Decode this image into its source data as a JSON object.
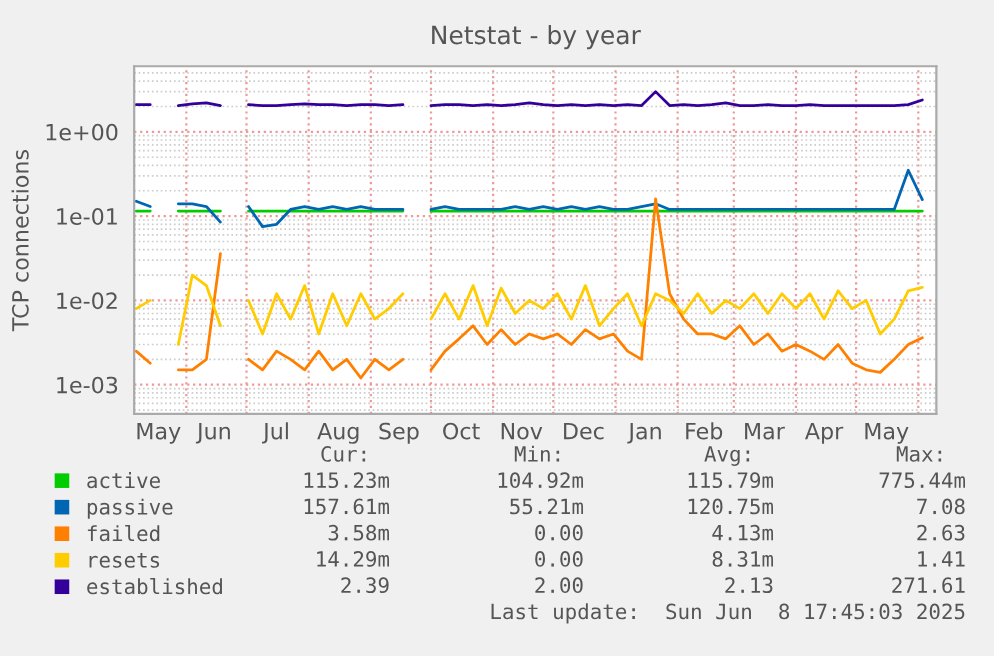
{
  "chart_data": {
    "type": "line",
    "title": "Netstat - by year",
    "ylabel": "TCP connections",
    "log": "y",
    "grid": true,
    "legend": "bottom",
    "xlim": [
      "2024-05-06",
      "2025-06-10"
    ],
    "ylim": [
      0.00045,
      6
    ],
    "xticks": [
      {
        "value": "2024-06-01",
        "label": null
      },
      {
        "value": "2024-07-01",
        "label": null
      },
      {
        "value": "2024-08-01",
        "label": null
      },
      {
        "value": "2024-09-01",
        "label": null
      },
      {
        "value": "2024-10-01",
        "label": null
      },
      {
        "value": "2024-11-01",
        "label": null
      },
      {
        "value": "2024-12-01",
        "label": null
      },
      {
        "value": "2025-01-01",
        "label": null
      },
      {
        "value": "2025-02-01",
        "label": null
      },
      {
        "value": "2025-03-01",
        "label": null
      },
      {
        "value": "2025-04-01",
        "label": null
      },
      {
        "value": "2025-05-01",
        "label": null
      },
      {
        "value": "2025-06-01",
        "label": null
      },
      {
        "value": "2024-05-18",
        "label": "May"
      },
      {
        "value": "2024-06-15",
        "label": "Jun"
      },
      {
        "value": "2024-07-16",
        "label": "Jul"
      },
      {
        "value": "2024-08-16",
        "label": "Aug"
      },
      {
        "value": "2024-09-15",
        "label": "Sep"
      },
      {
        "value": "2024-10-16",
        "label": "Oct"
      },
      {
        "value": "2024-11-15",
        "label": "Nov"
      },
      {
        "value": "2024-12-16",
        "label": "Dec"
      },
      {
        "value": "2025-01-16",
        "label": "Jan"
      },
      {
        "value": "2025-02-14",
        "label": "Feb"
      },
      {
        "value": "2025-03-16",
        "label": "Mar"
      },
      {
        "value": "2025-04-15",
        "label": "Apr"
      },
      {
        "value": "2025-05-16",
        "label": "May"
      }
    ],
    "yticks": [
      {
        "value": 0.001,
        "label": "1e-03"
      },
      {
        "value": 0.01,
        "label": "1e-02"
      },
      {
        "value": 0.1,
        "label": "1e-01"
      },
      {
        "value": 1,
        "label": "1e+00"
      }
    ],
    "x": [
      "2024-05-07",
      "2024-05-14",
      "2024-05-21",
      "2024-05-28",
      "2024-06-04",
      "2024-06-11",
      "2024-06-18",
      "2024-06-25",
      "2024-07-02",
      "2024-07-09",
      "2024-07-16",
      "2024-07-23",
      "2024-07-30",
      "2024-08-06",
      "2024-08-13",
      "2024-08-20",
      "2024-08-27",
      "2024-09-03",
      "2024-09-10",
      "2024-09-17",
      "2024-09-24",
      "2024-10-01",
      "2024-10-08",
      "2024-10-15",
      "2024-10-22",
      "2024-10-29",
      "2024-11-05",
      "2024-11-12",
      "2024-11-19",
      "2024-11-26",
      "2024-12-03",
      "2024-12-10",
      "2024-12-17",
      "2024-12-24",
      "2024-12-31",
      "2025-01-07",
      "2025-01-14",
      "2025-01-21",
      "2025-01-28",
      "2025-02-04",
      "2025-02-11",
      "2025-02-18",
      "2025-02-25",
      "2025-03-04",
      "2025-03-11",
      "2025-03-18",
      "2025-03-25",
      "2025-04-01",
      "2025-04-08",
      "2025-04-15",
      "2025-04-22",
      "2025-04-29",
      "2025-05-06",
      "2025-05-13",
      "2025-05-20",
      "2025-05-27",
      "2025-06-03"
    ],
    "series": [
      {
        "name": "active",
        "color": "#00cc00",
        "values": [
          0.115,
          0.115,
          null,
          0.115,
          0.115,
          0.115,
          0.115,
          null,
          0.115,
          0.115,
          0.115,
          0.115,
          0.115,
          0.115,
          0.115,
          0.115,
          0.115,
          0.115,
          0.115,
          0.115,
          null,
          0.115,
          0.115,
          0.115,
          0.115,
          0.115,
          0.115,
          0.115,
          0.115,
          0.115,
          0.115,
          0.115,
          0.115,
          0.115,
          0.115,
          0.115,
          0.115,
          0.115,
          0.115,
          0.115,
          0.115,
          0.115,
          0.115,
          0.115,
          0.115,
          0.115,
          0.115,
          0.115,
          0.115,
          0.115,
          0.115,
          0.115,
          0.115,
          0.115,
          0.115,
          0.115,
          0.115
        ]
      },
      {
        "name": "passive",
        "color": "#0066b3",
        "values": [
          0.15,
          0.13,
          null,
          0.14,
          0.14,
          0.13,
          0.085,
          null,
          0.13,
          0.075,
          0.08,
          0.12,
          0.13,
          0.12,
          0.13,
          0.12,
          0.13,
          0.12,
          0.12,
          0.12,
          null,
          0.12,
          0.13,
          0.12,
          0.12,
          0.12,
          0.12,
          0.13,
          0.12,
          0.13,
          0.12,
          0.13,
          0.12,
          0.13,
          0.12,
          0.12,
          0.13,
          0.14,
          0.12,
          0.12,
          0.12,
          0.12,
          0.12,
          0.12,
          0.12,
          0.12,
          0.12,
          0.12,
          0.12,
          0.12,
          0.12,
          0.12,
          0.12,
          0.12,
          0.12,
          0.35,
          0.157
        ]
      },
      {
        "name": "failed",
        "color": "#ff8000",
        "values": [
          0.0025,
          0.0018,
          null,
          0.0015,
          0.0015,
          0.002,
          0.036,
          null,
          0.002,
          0.0015,
          0.0025,
          0.002,
          0.0015,
          0.0025,
          0.0015,
          0.002,
          0.0012,
          0.002,
          0.0015,
          0.002,
          null,
          0.0015,
          0.0025,
          0.0035,
          0.005,
          0.003,
          0.0045,
          0.003,
          0.004,
          0.0035,
          0.004,
          0.003,
          0.0045,
          0.0035,
          0.004,
          0.0025,
          0.002,
          0.16,
          0.012,
          0.006,
          0.004,
          0.004,
          0.0035,
          0.005,
          0.003,
          0.004,
          0.0025,
          0.003,
          0.0025,
          0.002,
          0.003,
          0.0018,
          0.0015,
          0.0014,
          0.002,
          0.003,
          0.0036
        ]
      },
      {
        "name": "resets",
        "color": "#ffcc00",
        "values": [
          0.008,
          0.01,
          null,
          0.003,
          0.02,
          0.015,
          0.005,
          null,
          0.01,
          0.004,
          0.012,
          0.006,
          0.015,
          0.004,
          0.012,
          0.005,
          0.012,
          0.006,
          0.008,
          0.012,
          null,
          0.006,
          0.012,
          0.006,
          0.015,
          0.005,
          0.014,
          0.007,
          0.01,
          0.008,
          0.012,
          0.006,
          0.015,
          0.005,
          0.008,
          0.012,
          0.005,
          0.012,
          0.01,
          0.007,
          0.012,
          0.007,
          0.01,
          0.008,
          0.012,
          0.007,
          0.012,
          0.008,
          0.012,
          0.006,
          0.013,
          0.008,
          0.01,
          0.004,
          0.006,
          0.013,
          0.0143
        ]
      },
      {
        "name": "established",
        "color": "#330099",
        "values": [
          2.1,
          2.1,
          null,
          2.05,
          2.15,
          2.2,
          2.05,
          null,
          2.1,
          2.05,
          2.05,
          2.1,
          2.15,
          2.1,
          2.1,
          2.05,
          2.1,
          2.1,
          2.05,
          2.1,
          null,
          2.05,
          2.1,
          2.1,
          2.05,
          2.1,
          2.05,
          2.1,
          2.2,
          2.1,
          2.05,
          2.1,
          2.05,
          2.1,
          2.05,
          2.1,
          2.05,
          3.0,
          2.05,
          2.1,
          2.05,
          2.1,
          2.2,
          2.05,
          2.05,
          2.1,
          2.05,
          2.05,
          2.1,
          2.05,
          2.05,
          2.05,
          2.05,
          2.05,
          2.05,
          2.1,
          2.39
        ]
      }
    ],
    "annotations": [
      "Cur:",
      "Min:",
      "Avg:",
      "Max:",
      "115.23m",
      "104.92m",
      "115.79m",
      "775.44m",
      "157.61m",
      "55.21m",
      "120.75m",
      "7.08",
      "3.58m",
      "0.00",
      "4.13m",
      "2.63",
      "14.29m",
      "0.00",
      "8.31m",
      "1.41",
      "2.39",
      "2.00",
      "2.13",
      "271.61",
      "Last update:  Sun Jun  8 17:45:03 2025"
    ]
  }
}
